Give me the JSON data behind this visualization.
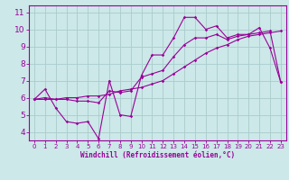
{
  "title": "",
  "xlabel": "Windchill (Refroidissement éolien,°C)",
  "bg_color": "#cce8e8",
  "line_color": "#990099",
  "grid_color": "#aacccc",
  "x_ticks": [
    0,
    1,
    2,
    3,
    4,
    5,
    6,
    7,
    8,
    9,
    10,
    11,
    12,
    13,
    14,
    15,
    16,
    17,
    18,
    19,
    20,
    21,
    22,
    23
  ],
  "y_ticks": [
    4,
    5,
    6,
    7,
    8,
    9,
    10,
    11
  ],
  "ylim": [
    3.5,
    11.4
  ],
  "xlim": [
    -0.5,
    23.5
  ],
  "series1_x": [
    0,
    1,
    2,
    3,
    4,
    5,
    6,
    7,
    8,
    9,
    10,
    11,
    12,
    13,
    14,
    15,
    16,
    17,
    18,
    19,
    20,
    21,
    22,
    23
  ],
  "series1_y": [
    5.9,
    6.5,
    5.4,
    4.6,
    4.5,
    4.6,
    3.6,
    7.0,
    5.0,
    4.9,
    7.3,
    8.5,
    8.5,
    9.5,
    10.7,
    10.7,
    10.0,
    10.2,
    9.5,
    9.7,
    9.7,
    10.1,
    8.9,
    6.9
  ],
  "series2_x": [
    0,
    1,
    2,
    3,
    4,
    5,
    6,
    7,
    8,
    9,
    10,
    11,
    12,
    13,
    14,
    15,
    16,
    17,
    18,
    19,
    20,
    21,
    22,
    23
  ],
  "series2_y": [
    5.9,
    5.9,
    5.9,
    6.0,
    6.0,
    6.1,
    6.1,
    6.2,
    6.4,
    6.5,
    6.6,
    6.8,
    7.0,
    7.4,
    7.8,
    8.2,
    8.6,
    8.9,
    9.1,
    9.4,
    9.6,
    9.7,
    9.8,
    9.9
  ],
  "series3_x": [
    0,
    1,
    2,
    3,
    4,
    5,
    6,
    7,
    8,
    9,
    10,
    11,
    12,
    13,
    14,
    15,
    16,
    17,
    18,
    19,
    20,
    21,
    22,
    23
  ],
  "series3_y": [
    5.9,
    6.0,
    5.9,
    5.9,
    5.8,
    5.8,
    5.7,
    6.4,
    6.3,
    6.4,
    7.2,
    7.4,
    7.6,
    8.4,
    9.1,
    9.5,
    9.5,
    9.7,
    9.4,
    9.6,
    9.7,
    9.8,
    9.9,
    6.9
  ]
}
